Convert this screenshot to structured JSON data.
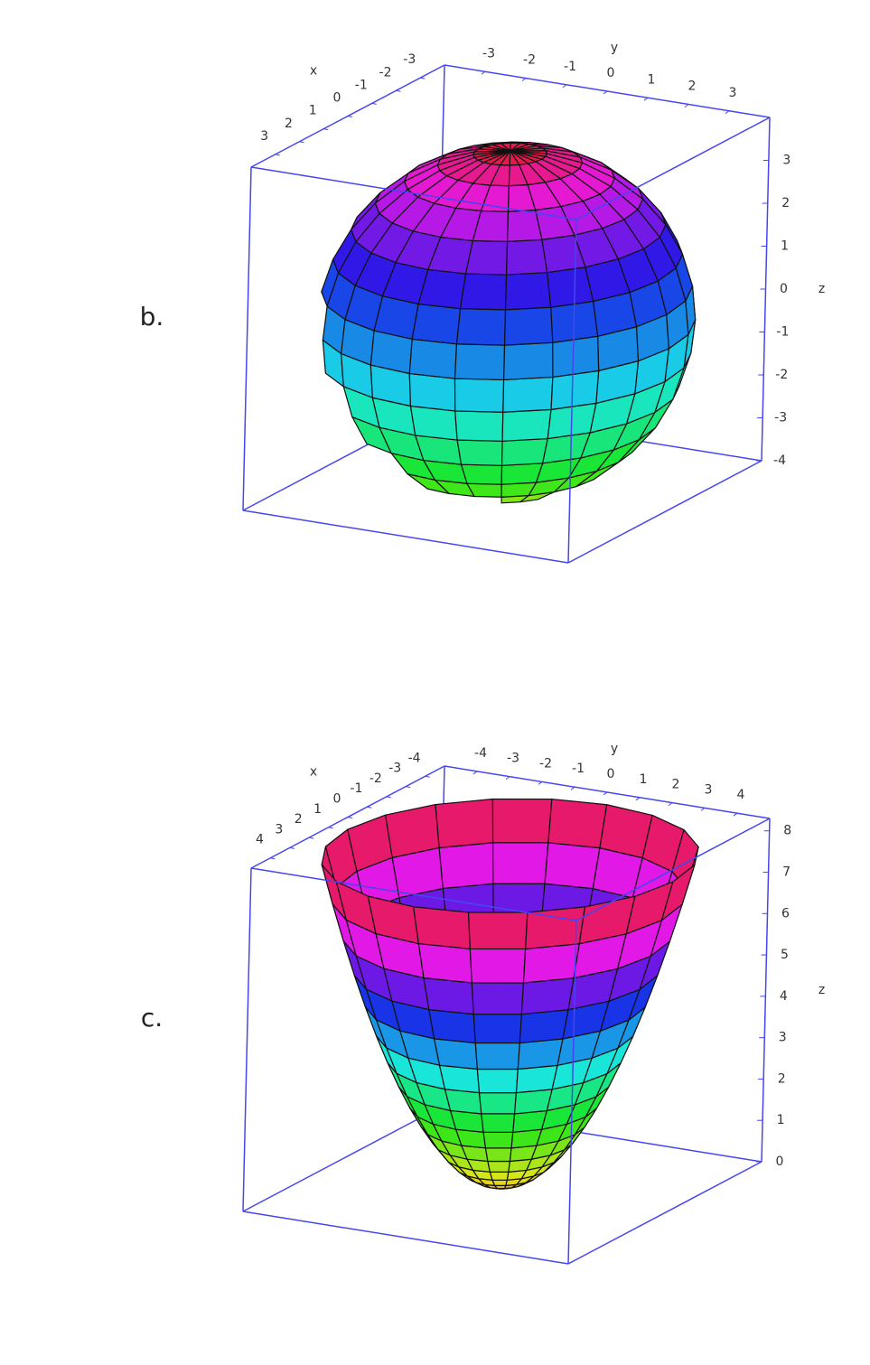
{
  "panels": [
    {
      "label": "b.",
      "x_axis": {
        "title": "x",
        "lim": [
          -4,
          4
        ],
        "ticks": [
          -3,
          -2,
          -1,
          0,
          1,
          2,
          3
        ]
      },
      "y_axis": {
        "title": "y",
        "lim": [
          -4,
          4
        ],
        "ticks": [
          -3,
          -2,
          -1,
          0,
          1,
          2,
          3
        ]
      },
      "z_axis": {
        "title": "z",
        "lim": [
          -4,
          4
        ],
        "ticks": [
          -4,
          -3,
          -2,
          -1,
          0,
          1,
          2,
          3
        ]
      }
    },
    {
      "label": "c.",
      "x_axis": {
        "title": "x",
        "lim": [
          -5,
          5
        ],
        "ticks": [
          -4,
          -3,
          -2,
          -1,
          0,
          1,
          2,
          3,
          4
        ]
      },
      "y_axis": {
        "title": "y",
        "lim": [
          -5,
          5
        ],
        "ticks": [
          -4,
          -3,
          -2,
          -1,
          0,
          1,
          2,
          3,
          4
        ]
      },
      "z_axis": {
        "title": "z",
        "lim": [
          0,
          8.3
        ],
        "ticks": [
          0,
          1,
          2,
          3,
          4,
          5,
          6,
          7,
          8
        ]
      }
    }
  ]
}
